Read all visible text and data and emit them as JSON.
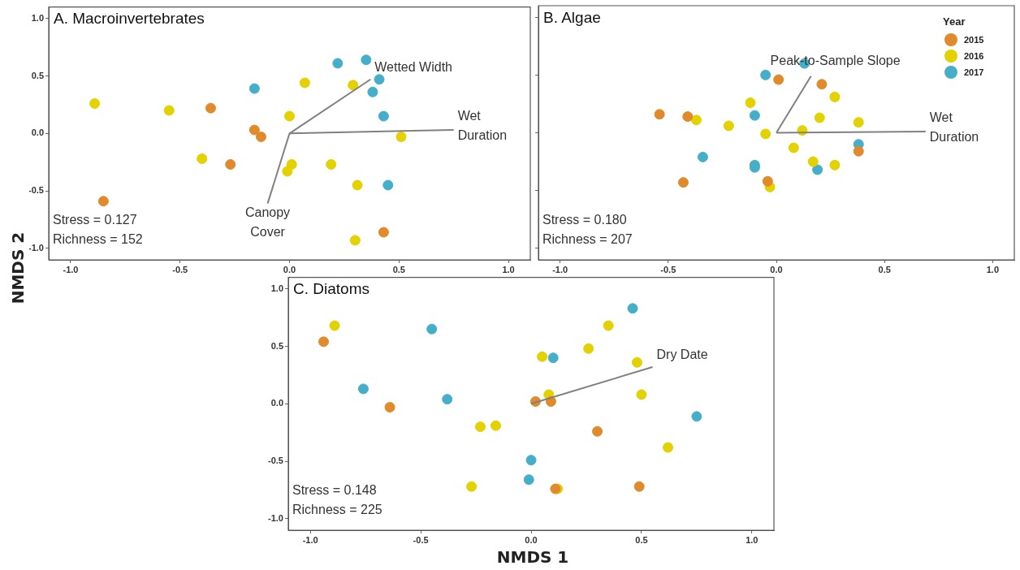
{
  "chart_data": [
    {
      "type": "scatter",
      "title": "A. Macroinvertebrates",
      "ylabel": "NMDS 2",
      "marker": "circle",
      "legend": false,
      "xlim": [
        -1.1,
        1.1
      ],
      "ylim": [
        -1.1,
        1.1
      ],
      "xticks": [
        {
          "value": -1,
          "label": "-1.0"
        },
        {
          "value": -0.5,
          "label": "-0.5"
        },
        {
          "value": 0,
          "label": "0.0"
        },
        {
          "value": 0.5,
          "label": "0.5"
        },
        {
          "value": 1,
          "label": "1.0"
        }
      ],
      "yticks": [
        {
          "value": -1,
          "label": "-1.0"
        },
        {
          "value": -0.5,
          "label": "-0.5"
        },
        {
          "value": 0,
          "label": "0.0"
        },
        {
          "value": 0.5,
          "label": "0.5"
        },
        {
          "value": 1,
          "label": "1.0"
        }
      ],
      "series": [
        {
          "color": "#e08a2c",
          "x": [
            -0.36,
            -0.16,
            -0.13,
            -0.27,
            -0.85,
            0.43
          ],
          "values": [
            0.22,
            0.03,
            -0.03,
            -0.27,
            -0.59,
            -0.86
          ]
        },
        {
          "color": "#e3d100",
          "x": [
            -0.89,
            -0.55,
            -0.4,
            0.0,
            0.07,
            0.29,
            0.01,
            -0.01,
            0.19,
            0.31,
            0.51,
            0.3
          ],
          "values": [
            0.26,
            0.2,
            -0.22,
            0.15,
            0.44,
            0.42,
            -0.27,
            -0.33,
            -0.27,
            -0.45,
            -0.03,
            -0.93
          ]
        },
        {
          "color": "#45afc9",
          "x": [
            0.22,
            0.35,
            -0.16,
            0.41,
            0.38,
            0.43,
            0.45
          ],
          "values": [
            0.61,
            0.64,
            0.39,
            0.47,
            0.36,
            0.15,
            -0.45
          ]
        },
        {
          "type": "line",
          "marker": "none",
          "color": "#808080",
          "x": [
            0,
            0.37
          ],
          "values": [
            0,
            0.47
          ]
        },
        {
          "type": "line",
          "marker": "none",
          "color": "#808080",
          "x": [
            0,
            0.75
          ],
          "values": [
            0,
            0.03
          ]
        },
        {
          "type": "line",
          "marker": "none",
          "color": "#808080",
          "x": [
            0,
            -0.1
          ],
          "values": [
            0,
            -0.61
          ]
        }
      ],
      "annotations": [
        {
          "text": "Wetted Width",
          "x": 0.37,
          "y": 0.47
        },
        {
          "text": "Wet\nDuration",
          "x": 0.75,
          "y": 0.03
        },
        {
          "text": "Canopy\nCover",
          "x": -0.1,
          "y": -0.61
        },
        "Stress = 0.127",
        "Richness = 152"
      ]
    },
    {
      "type": "scatter",
      "title": "B. Algae",
      "legend": "top right",
      "legend_title": "Year",
      "marker": "circle",
      "tick_labels": "x",
      "xlim": [
        -1.1,
        1.1
      ],
      "ylim": [
        -1.1,
        1.1
      ],
      "xticks": [
        {
          "value": -1,
          "label": "-1.0"
        },
        {
          "value": -0.5,
          "label": "-0.5"
        },
        {
          "value": 0,
          "label": "0.0"
        },
        {
          "value": 0.5,
          "label": "0.5"
        },
        {
          "value": 1,
          "label": "1.0"
        }
      ],
      "yticks": [
        {
          "value": -1,
          "label": null
        },
        {
          "value": -0.5,
          "label": null
        },
        {
          "value": 0,
          "label": null
        },
        {
          "value": 0.5,
          "label": null
        },
        {
          "value": 1,
          "label": null
        }
      ],
      "series": [
        {
          "name": "2015",
          "color": "#e08a2c",
          "x": [
            -0.54,
            -0.41,
            0.01,
            0.21,
            0.38,
            -0.43,
            -0.04
          ],
          "values": [
            0.16,
            0.14,
            0.46,
            0.42,
            -0.16,
            -0.43,
            -0.42
          ]
        },
        {
          "name": "2016",
          "color": "#e3d100",
          "x": [
            -0.37,
            -0.22,
            -0.12,
            -0.05,
            0.12,
            0.2,
            0.27,
            0.38,
            0.08,
            0.17,
            0.27,
            -0.03
          ],
          "values": [
            0.11,
            0.06,
            0.26,
            -0.01,
            0.02,
            0.13,
            0.31,
            0.09,
            -0.13,
            -0.25,
            -0.28,
            -0.47
          ]
        },
        {
          "name": "2017",
          "color": "#45afc9",
          "x": [
            0.13,
            -0.05,
            -0.1,
            -0.34,
            -0.1,
            -0.1,
            0.19,
            0.38
          ],
          "values": [
            0.6,
            0.5,
            0.15,
            -0.21,
            -0.28,
            -0.3,
            -0.32,
            -0.1
          ]
        },
        {
          "type": "line",
          "marker": "none",
          "color": "#808080",
          "x": [
            0,
            0.16
          ],
          "values": [
            0,
            0.49
          ]
        },
        {
          "type": "line",
          "marker": "none",
          "color": "#808080",
          "x": [
            0,
            0.69
          ],
          "values": [
            0,
            0.01
          ]
        }
      ],
      "annotations": [
        {
          "text": "Peak-to-Sample Slope",
          "x": 0.16,
          "y": 0.49
        },
        {
          "text": "Wet\nDuration",
          "x": 0.69,
          "y": 0.01
        },
        "Stress = 0.180",
        "Richness = 207"
      ]
    },
    {
      "type": "scatter",
      "title": "C. Diatoms",
      "xlabel": "NMDS 1",
      "marker": "circle",
      "legend": false,
      "xlim": [
        -1.1,
        1.1
      ],
      "ylim": [
        -1.1,
        1.1
      ],
      "xticks": [
        {
          "value": -1,
          "label": "-1.0"
        },
        {
          "value": -0.5,
          "label": "-0.5"
        },
        {
          "value": 0,
          "label": "0.0"
        },
        {
          "value": 0.5,
          "label": "0.5"
        },
        {
          "value": 1,
          "label": "1.0"
        }
      ],
      "yticks": [
        {
          "value": -1,
          "label": "-1.0"
        },
        {
          "value": -0.5,
          "label": "-0.5"
        },
        {
          "value": 0,
          "label": "0.0"
        },
        {
          "value": 0.5,
          "label": "0.5"
        },
        {
          "value": 1,
          "label": "1.0"
        }
      ],
      "series": [
        {
          "color": "#e08a2c",
          "x": [
            -0.94,
            -0.64,
            0.02,
            0.09,
            0.3,
            0.11,
            0.49
          ],
          "values": [
            0.54,
            -0.03,
            0.02,
            0.02,
            -0.24,
            -0.74,
            -0.72
          ]
        },
        {
          "color": "#e3d100",
          "x": [
            -0.89,
            0.05,
            0.26,
            0.35,
            0.48,
            0.08,
            0.5,
            -0.23,
            -0.16,
            0.62,
            -0.27,
            0.12
          ],
          "values": [
            0.68,
            0.41,
            0.48,
            0.68,
            0.36,
            0.08,
            0.08,
            -0.2,
            -0.19,
            -0.38,
            -0.72,
            -0.74
          ]
        },
        {
          "color": "#45afc9",
          "x": [
            -0.45,
            -0.76,
            -0.38,
            0.1,
            0.46,
            0.75,
            0.0,
            -0.01
          ],
          "values": [
            0.65,
            0.13,
            0.04,
            0.4,
            0.83,
            -0.11,
            -0.49,
            -0.66
          ]
        },
        {
          "type": "line",
          "marker": "none",
          "color": "#808080",
          "x": [
            0,
            0.55
          ],
          "values": [
            0,
            0.32
          ]
        }
      ],
      "annotations": [
        {
          "text": "Dry Date",
          "x": 0.55,
          "y": 0.32
        },
        "Stress = 0.148",
        "Richness = 225"
      ]
    }
  ]
}
